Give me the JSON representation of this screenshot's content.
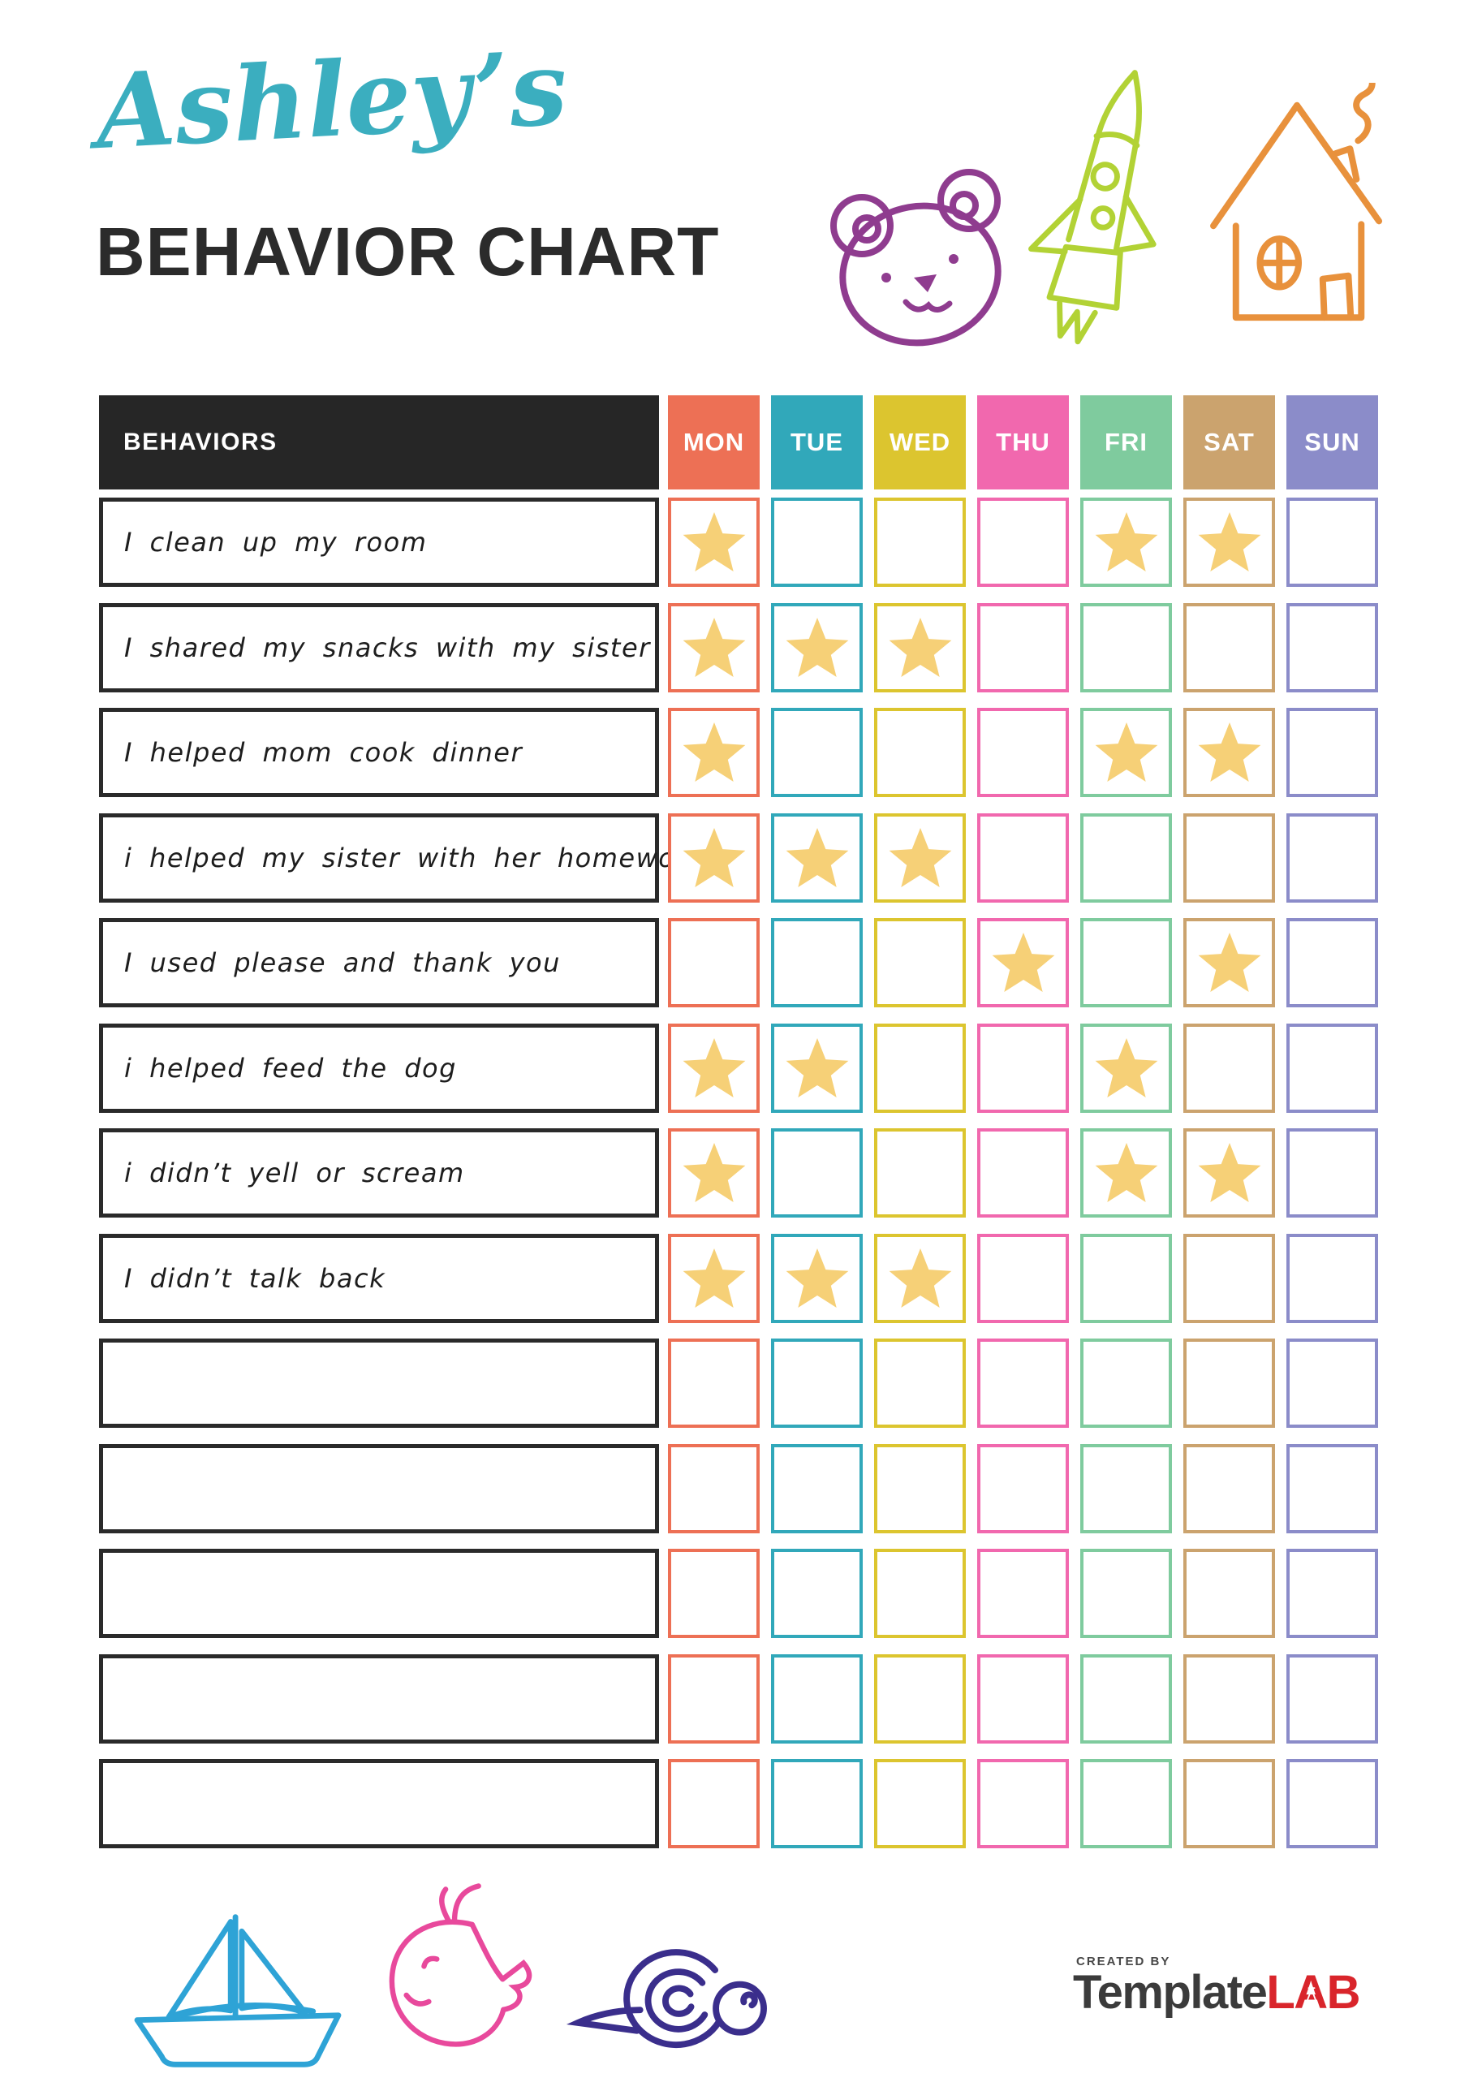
{
  "title": {
    "script": "Ashley’s",
    "main": "BEHAVIOR CHART"
  },
  "chart": {
    "behaviors_header": "BEHAVIORS",
    "days": [
      {
        "label": "MON",
        "color": "#ED7055"
      },
      {
        "label": "TUE",
        "color": "#31A8BA"
      },
      {
        "label": "WED",
        "color": "#DCC52F"
      },
      {
        "label": "THU",
        "color": "#F168AE"
      },
      {
        "label": "FRI",
        "color": "#7FCB9E"
      },
      {
        "label": "SAT",
        "color": "#CBA36E"
      },
      {
        "label": "SUN",
        "color": "#8B8CC9"
      }
    ],
    "star_color": "#F6D077",
    "rows": [
      {
        "label": "I clean up my room",
        "stars": [
          1,
          0,
          0,
          0,
          1,
          1,
          0
        ]
      },
      {
        "label": "I shared my snacks with my sister",
        "stars": [
          1,
          1,
          1,
          0,
          0,
          0,
          0
        ]
      },
      {
        "label": "I helped mom cook dinner",
        "stars": [
          1,
          0,
          0,
          0,
          1,
          1,
          0
        ]
      },
      {
        "label": "i helped my sister with her homework",
        "stars": [
          1,
          1,
          1,
          0,
          0,
          0,
          0
        ]
      },
      {
        "label": "I used please and thank you",
        "stars": [
          0,
          0,
          0,
          1,
          0,
          1,
          0
        ]
      },
      {
        "label": "i helped feed the dog",
        "stars": [
          1,
          1,
          0,
          0,
          1,
          0,
          0
        ]
      },
      {
        "label": "i didn’t yell or scream",
        "stars": [
          1,
          0,
          0,
          0,
          1,
          1,
          0
        ]
      },
      {
        "label": "I didn’t talk back",
        "stars": [
          1,
          1,
          1,
          0,
          0,
          0,
          0
        ]
      },
      {
        "label": "",
        "stars": [
          0,
          0,
          0,
          0,
          0,
          0,
          0
        ]
      },
      {
        "label": "",
        "stars": [
          0,
          0,
          0,
          0,
          0,
          0,
          0
        ]
      },
      {
        "label": "",
        "stars": [
          0,
          0,
          0,
          0,
          0,
          0,
          0
        ]
      },
      {
        "label": "",
        "stars": [
          0,
          0,
          0,
          0,
          0,
          0,
          0
        ]
      },
      {
        "label": "",
        "stars": [
          0,
          0,
          0,
          0,
          0,
          0,
          0
        ]
      }
    ]
  },
  "footer": {
    "created_by": "CREATED BY",
    "brand": "Template",
    "brand_suffix_l": "L",
    "brand_suffix_a": "A",
    "brand_suffix_b": "B"
  },
  "colors": {
    "ink": "#1d1d1d",
    "header_bg": "#262626",
    "title_script": "#3BAEBF",
    "title_main": "#2B2B2B",
    "bear": "#8F3C8F",
    "rocket": "#B2D235",
    "house": "#E8913C",
    "boat": "#2EA3D6",
    "whale": "#E8499C",
    "snail": "#3A2E8C",
    "logo_text": "#3B3B3B",
    "logo_red": "#D9252B",
    "created_by": "#474747"
  }
}
